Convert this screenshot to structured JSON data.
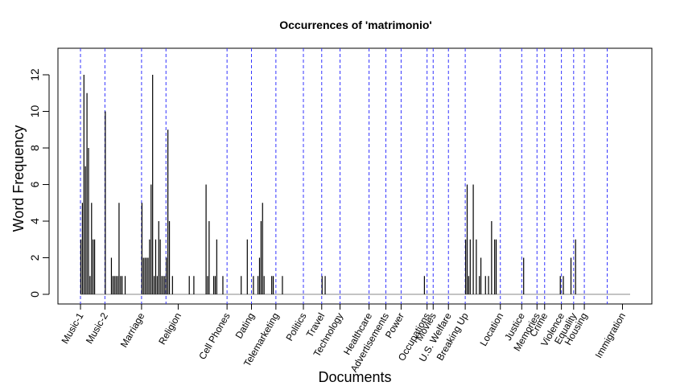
{
  "chart_data": {
    "type": "bar",
    "title": "Occurrences of 'matrimonio'",
    "xlabel": "Documents",
    "ylabel": "Word Frequency",
    "ylim": [
      0,
      13
    ],
    "yticks": [
      0,
      2,
      4,
      6,
      8,
      10,
      12
    ],
    "grid": false,
    "legend": "none",
    "colors": {
      "bars": "#000000",
      "separators": "#3333ff",
      "axis": "#000000"
    },
    "n_documents": 360,
    "categories": [
      {
        "label": "Music-1",
        "start": 0,
        "label_pos": 0
      },
      {
        "label": "Music-2",
        "start": 16,
        "label_pos": 16
      },
      {
        "label": "Marriage",
        "start": 40,
        "label_pos": 40
      },
      {
        "label": "Religion",
        "start": 56,
        "label_pos": 64
      },
      {
        "label": "Cell Phones",
        "start": 96,
        "label_pos": 96
      },
      {
        "label": "Dating",
        "start": 112,
        "label_pos": 112
      },
      {
        "label": "Telemarketing",
        "start": 128,
        "label_pos": 128
      },
      {
        "label": "Politics",
        "start": 146,
        "label_pos": 146
      },
      {
        "label": "Travel",
        "start": 158,
        "label_pos": 158
      },
      {
        "label": "Technology",
        "start": 170,
        "label_pos": 170
      },
      {
        "label": "Healthcare",
        "start": 189,
        "label_pos": 189
      },
      {
        "label": "Advertisements",
        "start": 200,
        "label_pos": 200
      },
      {
        "label": "Power",
        "start": 210,
        "label_pos": 210
      },
      {
        "label": "Occupations",
        "start": 227,
        "label_pos": 227
      },
      {
        "label": "Movies",
        "start": 231,
        "label_pos": 231
      },
      {
        "label": "U.S. Welfare",
        "start": 241,
        "label_pos": 241
      },
      {
        "label": "Breaking Up",
        "start": 252,
        "label_pos": 252
      },
      {
        "label": "Location",
        "start": 275,
        "label_pos": 275
      },
      {
        "label": "Justice",
        "start": 289,
        "label_pos": 289
      },
      {
        "label": "Memories",
        "start": 299,
        "label_pos": 299
      },
      {
        "label": "Crime",
        "start": 304,
        "label_pos": 304
      },
      {
        "label": "Violence",
        "start": 315,
        "label_pos": 315
      },
      {
        "label": "Equality",
        "start": 323,
        "label_pos": 323
      },
      {
        "label": "Housing",
        "start": 330,
        "label_pos": 330
      },
      {
        "label": "Immigration",
        "start": 345,
        "label_pos": 355
      }
    ],
    "values": [
      [
        0,
        3
      ],
      [
        1,
        5
      ],
      [
        2,
        12
      ],
      [
        3,
        7
      ],
      [
        4,
        11
      ],
      [
        5,
        8
      ],
      [
        6,
        1
      ],
      [
        7,
        5
      ],
      [
        8,
        3
      ],
      [
        9,
        3
      ],
      [
        16,
        10
      ],
      [
        20,
        2
      ],
      [
        21,
        1
      ],
      [
        22,
        1
      ],
      [
        23,
        1
      ],
      [
        24,
        1
      ],
      [
        25,
        5
      ],
      [
        26,
        1
      ],
      [
        27,
        1
      ],
      [
        29,
        1
      ],
      [
        40,
        5
      ],
      [
        41,
        2
      ],
      [
        42,
        2
      ],
      [
        43,
        2
      ],
      [
        44,
        2
      ],
      [
        45,
        3
      ],
      [
        46,
        6
      ],
      [
        47,
        12
      ],
      [
        48,
        1
      ],
      [
        49,
        3
      ],
      [
        50,
        1
      ],
      [
        51,
        4
      ],
      [
        52,
        3
      ],
      [
        53,
        1
      ],
      [
        54,
        1
      ],
      [
        55,
        1
      ],
      [
        56,
        2
      ],
      [
        57,
        9
      ],
      [
        58,
        4
      ],
      [
        60,
        1
      ],
      [
        71,
        1
      ],
      [
        74,
        1
      ],
      [
        82,
        6
      ],
      [
        83,
        1
      ],
      [
        84,
        4
      ],
      [
        87,
        1
      ],
      [
        88,
        1
      ],
      [
        89,
        3
      ],
      [
        93,
        1
      ],
      [
        105,
        1
      ],
      [
        109,
        3
      ],
      [
        113,
        1
      ],
      [
        116,
        1
      ],
      [
        117,
        2
      ],
      [
        118,
        4
      ],
      [
        119,
        5
      ],
      [
        120,
        1
      ],
      [
        125,
        1
      ],
      [
        126,
        1
      ],
      [
        132,
        1
      ],
      [
        158,
        1
      ],
      [
        160,
        1
      ],
      [
        225,
        1
      ],
      [
        252,
        3
      ],
      [
        253,
        6
      ],
      [
        254,
        1
      ],
      [
        255,
        3
      ],
      [
        257,
        6
      ],
      [
        259,
        3
      ],
      [
        261,
        1
      ],
      [
        262,
        2
      ],
      [
        265,
        1
      ],
      [
        267,
        1
      ],
      [
        269,
        4
      ],
      [
        271,
        3
      ],
      [
        272,
        3
      ],
      [
        290,
        2
      ],
      [
        314,
        1
      ],
      [
        316,
        1
      ],
      [
        321,
        2
      ],
      [
        324,
        3
      ]
    ]
  }
}
